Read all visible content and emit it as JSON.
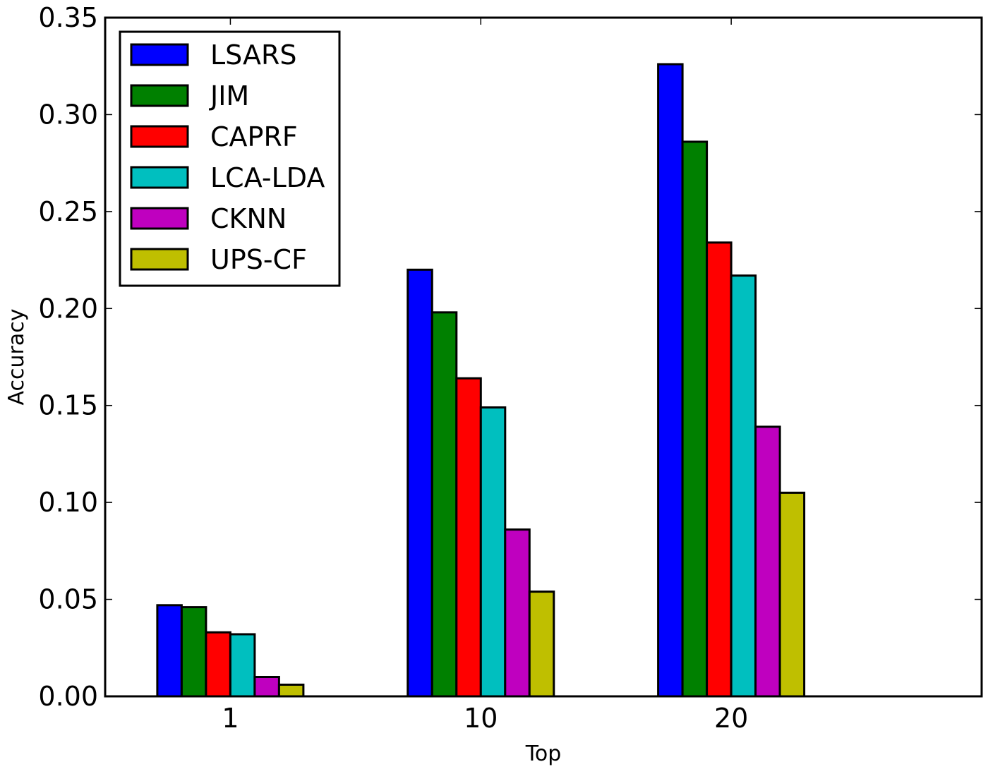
{
  "chart_data": {
    "type": "bar",
    "categories": [
      "1",
      "10",
      "20"
    ],
    "series": [
      {
        "name": "LSARS",
        "color": "#0000ff",
        "values": [
          0.047,
          0.22,
          0.326
        ]
      },
      {
        "name": "JIM",
        "color": "#008000",
        "values": [
          0.046,
          0.198,
          0.286
        ]
      },
      {
        "name": "CAPRF",
        "color": "#ff0000",
        "values": [
          0.033,
          0.164,
          0.234
        ]
      },
      {
        "name": "LCA-LDA",
        "color": "#00bfbf",
        "values": [
          0.032,
          0.149,
          0.217
        ]
      },
      {
        "name": "CKNN",
        "color": "#bf00bf",
        "values": [
          0.01,
          0.086,
          0.139
        ]
      },
      {
        "name": "UPS-CF",
        "color": "#bfbf00",
        "values": [
          0.006,
          0.054,
          0.105
        ]
      }
    ],
    "xlabel": "Top",
    "ylabel": "Accuracy",
    "ylim": [
      0,
      0.35
    ],
    "yticks": [
      "0.00",
      "0.05",
      "0.10",
      "0.15",
      "0.20",
      "0.25",
      "0.30",
      "0.35"
    ],
    "legend_position": "top-left",
    "grid": false
  }
}
